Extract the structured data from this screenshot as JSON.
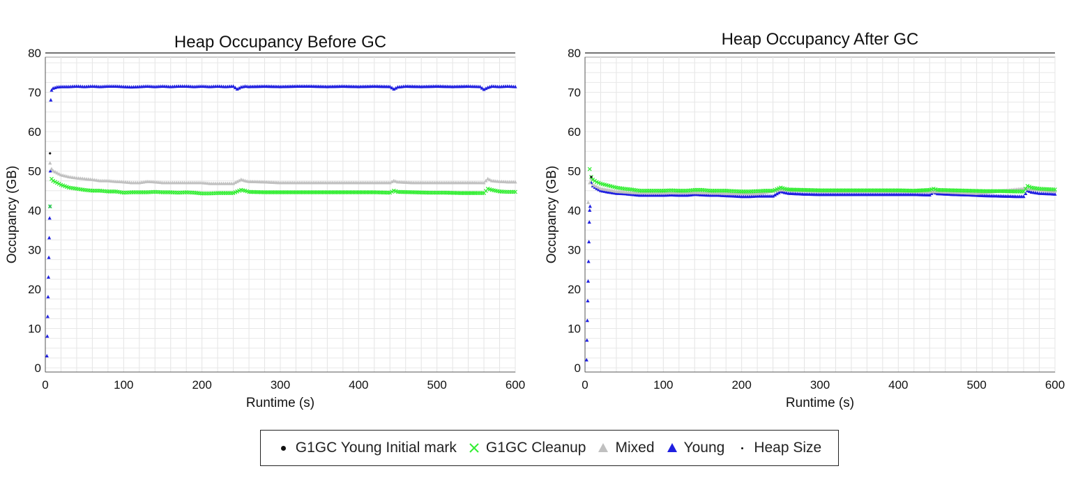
{
  "chart_data": [
    {
      "type": "scatter",
      "title": "Heap Occupancy Before GC",
      "xlabel": "Runtime (s)",
      "ylabel": "Occupancy (GB)",
      "xlim": [
        0,
        600
      ],
      "ylim": [
        0,
        80
      ],
      "x_ticks": [
        "0",
        "100",
        "200",
        "300",
        "400",
        "500",
        "600"
      ],
      "y_ticks": [
        "0",
        "10",
        "20",
        "30",
        "40",
        "50",
        "60",
        "70",
        "80"
      ],
      "grid": true,
      "series": [
        {
          "name": "Young",
          "marker": "triangle",
          "color": "#1f1fe0",
          "x": [
            2,
            2.5,
            3,
            3.5,
            4,
            4.5,
            5,
            5.5,
            6,
            6.5,
            7,
            8,
            10,
            15,
            20,
            30,
            40,
            50,
            60,
            70,
            80,
            90,
            100,
            110,
            120,
            130,
            140,
            150,
            160,
            170,
            180,
            190,
            200,
            210,
            220,
            230,
            240,
            245,
            250,
            255,
            260,
            280,
            300,
            320,
            340,
            360,
            380,
            400,
            420,
            440,
            445,
            450,
            460,
            480,
            500,
            520,
            540,
            555,
            560,
            565,
            570,
            580,
            590,
            600
          ],
          "y": [
            3,
            8,
            13,
            18,
            23,
            28,
            33,
            38,
            41,
            50,
            68,
            70.5,
            71,
            71.3,
            71.4,
            71.4,
            71.5,
            71.4,
            71.5,
            71.4,
            71.5,
            71.5,
            71.4,
            71.3,
            71.4,
            71.5,
            71.4,
            71.5,
            71.4,
            71.5,
            71.5,
            71.4,
            71.5,
            71.4,
            71.5,
            71.4,
            71.5,
            70.8,
            71.3,
            71.5,
            71.4,
            71.5,
            71.4,
            71.5,
            71.5,
            71.4,
            71.5,
            71.4,
            71.5,
            71.4,
            70.8,
            71.3,
            71.5,
            71.4,
            71.5,
            71.4,
            71.5,
            71.4,
            70.7,
            71.2,
            71.5,
            71.4,
            71.5,
            71.4
          ]
        },
        {
          "name": "Mixed",
          "marker": "triangle",
          "color": "#c0c0c0",
          "x": [
            6,
            8,
            10,
            15,
            20,
            30,
            40,
            50,
            60,
            70,
            80,
            90,
            100,
            110,
            120,
            130,
            140,
            150,
            160,
            170,
            180,
            190,
            200,
            210,
            220,
            230,
            240,
            250,
            255,
            260,
            280,
            300,
            320,
            340,
            360,
            380,
            400,
            420,
            440,
            445,
            450,
            470,
            490,
            510,
            530,
            550,
            560,
            565,
            570,
            580,
            590,
            600
          ],
          "y": [
            52,
            50.5,
            50,
            49.5,
            49,
            48.5,
            48.2,
            48,
            47.8,
            47.5,
            47.5,
            47.3,
            47.2,
            47,
            47,
            47.3,
            47.2,
            47,
            47,
            47,
            47,
            47,
            47,
            46.8,
            46.8,
            46.8,
            46.8,
            47.8,
            47.5,
            47.3,
            47.2,
            47,
            47,
            47,
            47,
            47,
            47,
            47,
            47,
            47.5,
            47.2,
            47,
            47,
            47,
            47,
            47,
            47,
            48,
            47.5,
            47.3,
            47.2,
            47.2
          ]
        },
        {
          "name": "G1GC Cleanup",
          "marker": "x",
          "color": "#33ee33",
          "x": [
            6,
            8,
            10,
            15,
            20,
            30,
            40,
            50,
            60,
            70,
            80,
            90,
            100,
            110,
            120,
            130,
            140,
            150,
            160,
            170,
            180,
            190,
            200,
            210,
            220,
            230,
            240,
            250,
            255,
            260,
            280,
            300,
            320,
            340,
            360,
            380,
            400,
            420,
            440,
            445,
            450,
            470,
            490,
            510,
            530,
            550,
            560,
            565,
            570,
            580,
            590,
            600
          ],
          "y": [
            41,
            48,
            47.5,
            47,
            46.5,
            45.8,
            45.5,
            45.2,
            45,
            45,
            44.8,
            44.8,
            44.5,
            44.6,
            44.6,
            44.6,
            44.7,
            44.6,
            44.6,
            44.5,
            44.6,
            44.5,
            44.3,
            44.3,
            44.4,
            44.4,
            44.4,
            45.2,
            45,
            44.7,
            44.6,
            44.6,
            44.6,
            44.6,
            44.6,
            44.6,
            44.6,
            44.6,
            44.5,
            45,
            44.7,
            44.6,
            44.5,
            44.5,
            44.4,
            44.4,
            44.4,
            45.5,
            45.2,
            44.8,
            44.7,
            44.7
          ]
        },
        {
          "name": "G1GC Young Initial mark",
          "marker": "dot",
          "color": "#111111",
          "x": [
            6
          ],
          "y": [
            54.5
          ]
        },
        {
          "name": "Heap Size",
          "marker": "line",
          "color": "#222222",
          "x": [
            0,
            600
          ],
          "y": [
            80,
            80
          ]
        }
      ]
    },
    {
      "type": "scatter",
      "title": "Heap Occupancy After GC",
      "xlabel": "Runtime (s)",
      "ylabel": "Occupancy (GB)",
      "xlim": [
        0,
        600
      ],
      "ylim": [
        0,
        80
      ],
      "x_ticks": [
        "0",
        "100",
        "200",
        "300",
        "400",
        "500",
        "600"
      ],
      "y_ticks": [
        "0",
        "10",
        "20",
        "30",
        "40",
        "50",
        "60",
        "70",
        "80"
      ],
      "grid": true,
      "series": [
        {
          "name": "Young",
          "marker": "triangle",
          "color": "#1f1fe0",
          "x": [
            2,
            2.5,
            3,
            3.5,
            4,
            4.5,
            5,
            5.5,
            6,
            6.5,
            8,
            10,
            15,
            20,
            30,
            40,
            50,
            60,
            70,
            80,
            90,
            100,
            110,
            120,
            130,
            140,
            150,
            160,
            170,
            180,
            190,
            200,
            210,
            220,
            230,
            240,
            250,
            255,
            260,
            280,
            300,
            320,
            340,
            360,
            380,
            400,
            420,
            440,
            445,
            450,
            470,
            490,
            510,
            530,
            550,
            560,
            565,
            570,
            580,
            590,
            600
          ],
          "y": [
            2,
            7,
            12,
            17,
            22,
            27,
            32,
            37,
            40,
            41,
            47,
            46.2,
            45.5,
            45,
            44.6,
            44.3,
            44.2,
            44,
            43.8,
            43.8,
            43.8,
            43.8,
            43.9,
            43.8,
            43.8,
            44,
            43.9,
            43.8,
            43.8,
            43.7,
            43.6,
            43.5,
            43.5,
            43.6,
            43.6,
            43.6,
            44.8,
            44.5,
            44.3,
            44.1,
            44,
            44,
            44,
            44,
            44,
            44,
            44,
            43.9,
            44.6,
            44.2,
            44,
            43.9,
            43.7,
            43.6,
            43.5,
            43.5,
            45,
            44.6,
            44.3,
            44.2,
            44.1
          ]
        },
        {
          "name": "Mixed",
          "marker": "triangle",
          "color": "#c0c0c0",
          "x": [
            4,
            6,
            8,
            10,
            20,
            40,
            60,
            80,
            100,
            140,
            180,
            220,
            250,
            300,
            350,
            400,
            450,
            500,
            560,
            600
          ],
          "y": [
            42,
            47,
            48,
            46.5,
            45.5,
            44.8,
            44.5,
            44.4,
            44.4,
            44.5,
            44.3,
            44.2,
            45.2,
            44.8,
            44.8,
            44.8,
            44.7,
            44.3,
            45.5,
            44.8
          ]
        },
        {
          "name": "G1GC Cleanup",
          "marker": "x",
          "color": "#33ee33",
          "x": [
            6,
            8,
            10,
            15,
            20,
            30,
            40,
            50,
            60,
            70,
            80,
            90,
            100,
            110,
            120,
            130,
            140,
            150,
            160,
            170,
            180,
            190,
            200,
            210,
            220,
            230,
            240,
            250,
            255,
            260,
            280,
            300,
            320,
            340,
            360,
            380,
            400,
            420,
            440,
            445,
            450,
            470,
            490,
            510,
            530,
            550,
            560,
            565,
            570,
            580,
            590,
            600
          ],
          "y": [
            50.5,
            48.5,
            47.8,
            47.2,
            46.8,
            46.3,
            45.8,
            45.5,
            45.3,
            45,
            45,
            45,
            45,
            45.1,
            45,
            45,
            45.2,
            45.2,
            45,
            45,
            45,
            44.9,
            44.8,
            44.8,
            44.9,
            45,
            45,
            45.8,
            45.5,
            45.3,
            45.2,
            45.1,
            45.1,
            45.1,
            45.1,
            45.1,
            45.1,
            45,
            45.2,
            45.5,
            45.2,
            45.1,
            45,
            44.9,
            44.9,
            44.8,
            44.8,
            46.2,
            45.8,
            45.5,
            45.4,
            45.3
          ]
        },
        {
          "name": "G1GC Young Initial mark",
          "marker": "dot",
          "color": "#111111",
          "x": [
            8
          ],
          "y": [
            48.5
          ]
        },
        {
          "name": "Heap Size",
          "marker": "line",
          "color": "#222222",
          "x": [
            0,
            600
          ],
          "y": [
            80,
            80
          ]
        }
      ]
    }
  ],
  "legend": {
    "items": [
      {
        "label": "G1GC Young Initial mark",
        "symbol": "●",
        "color": "#111111"
      },
      {
        "label": "G1GC Cleanup",
        "symbol": "✕",
        "color": "#33ee33"
      },
      {
        "label": "Mixed",
        "symbol": "▲",
        "color": "#c0c0c0"
      },
      {
        "label": "Young",
        "symbol": "▲",
        "color": "#1f1fe0"
      },
      {
        "label": "Heap Size",
        "symbol": "·",
        "color": "#111111"
      }
    ]
  }
}
